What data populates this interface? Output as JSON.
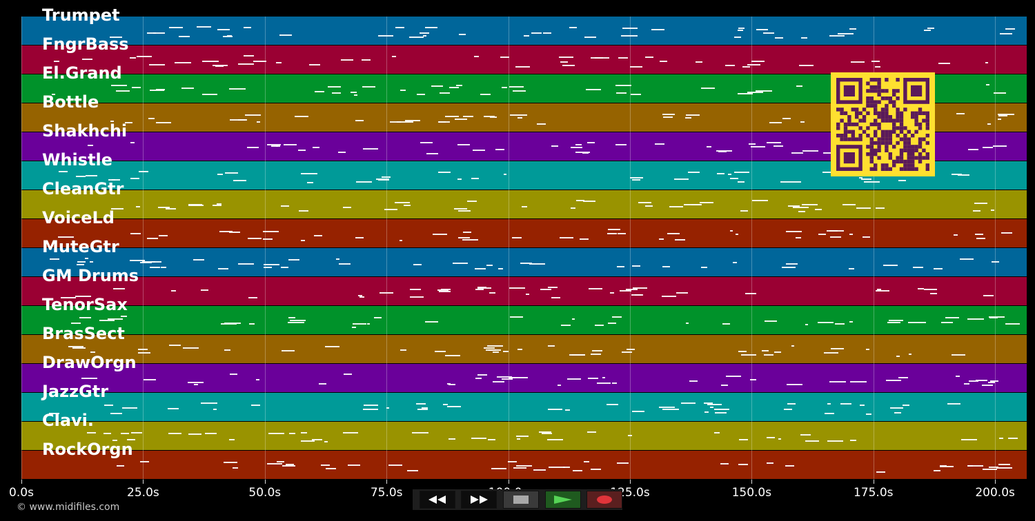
{
  "lanes": [
    {
      "label": "Trumpet",
      "color": "#00669a"
    },
    {
      "label": "FngrBass",
      "color": "#9a0033"
    },
    {
      "label": "El.Grand",
      "color": "#00922a"
    },
    {
      "label": "Bottle",
      "color": "#966300"
    },
    {
      "label": "Shakhchi",
      "color": "#6a009a"
    },
    {
      "label": "Whistle",
      "color": "#009a98"
    },
    {
      "label": "CleanGtr",
      "color": "#999300"
    },
    {
      "label": "VoiceLd",
      "color": "#962200"
    },
    {
      "label": "MuteGtr",
      "color": "#00669a"
    },
    {
      "label": "GM Drums",
      "color": "#9a0033"
    },
    {
      "label": "TenorSax",
      "color": "#00922a"
    },
    {
      "label": "BrasSect",
      "color": "#966300"
    },
    {
      "label": "DrawOrgn",
      "color": "#6a009a"
    },
    {
      "label": "JazzGtr",
      "color": "#009a98"
    },
    {
      "label": "Clavi.",
      "color": "#999300"
    },
    {
      "label": "RockOrgn",
      "color": "#962200"
    }
  ],
  "timeline": {
    "max_seconds": 206.5,
    "ticks": [
      "0.0s",
      "25.0s",
      "50.0s",
      "75.0s",
      "100.0s",
      "125.0s",
      "150.0s",
      "175.0s",
      "200.0s"
    ],
    "tick_values": [
      0,
      25,
      50,
      75,
      100,
      125,
      150,
      175,
      200
    ]
  },
  "transport": {
    "rewind": "rewind-icon",
    "fast_forward": "fast-forward-icon",
    "stop": "stop-icon",
    "play": "play-icon",
    "record": "record-icon"
  },
  "footer": {
    "copyright": "© www.midifiles.com"
  }
}
